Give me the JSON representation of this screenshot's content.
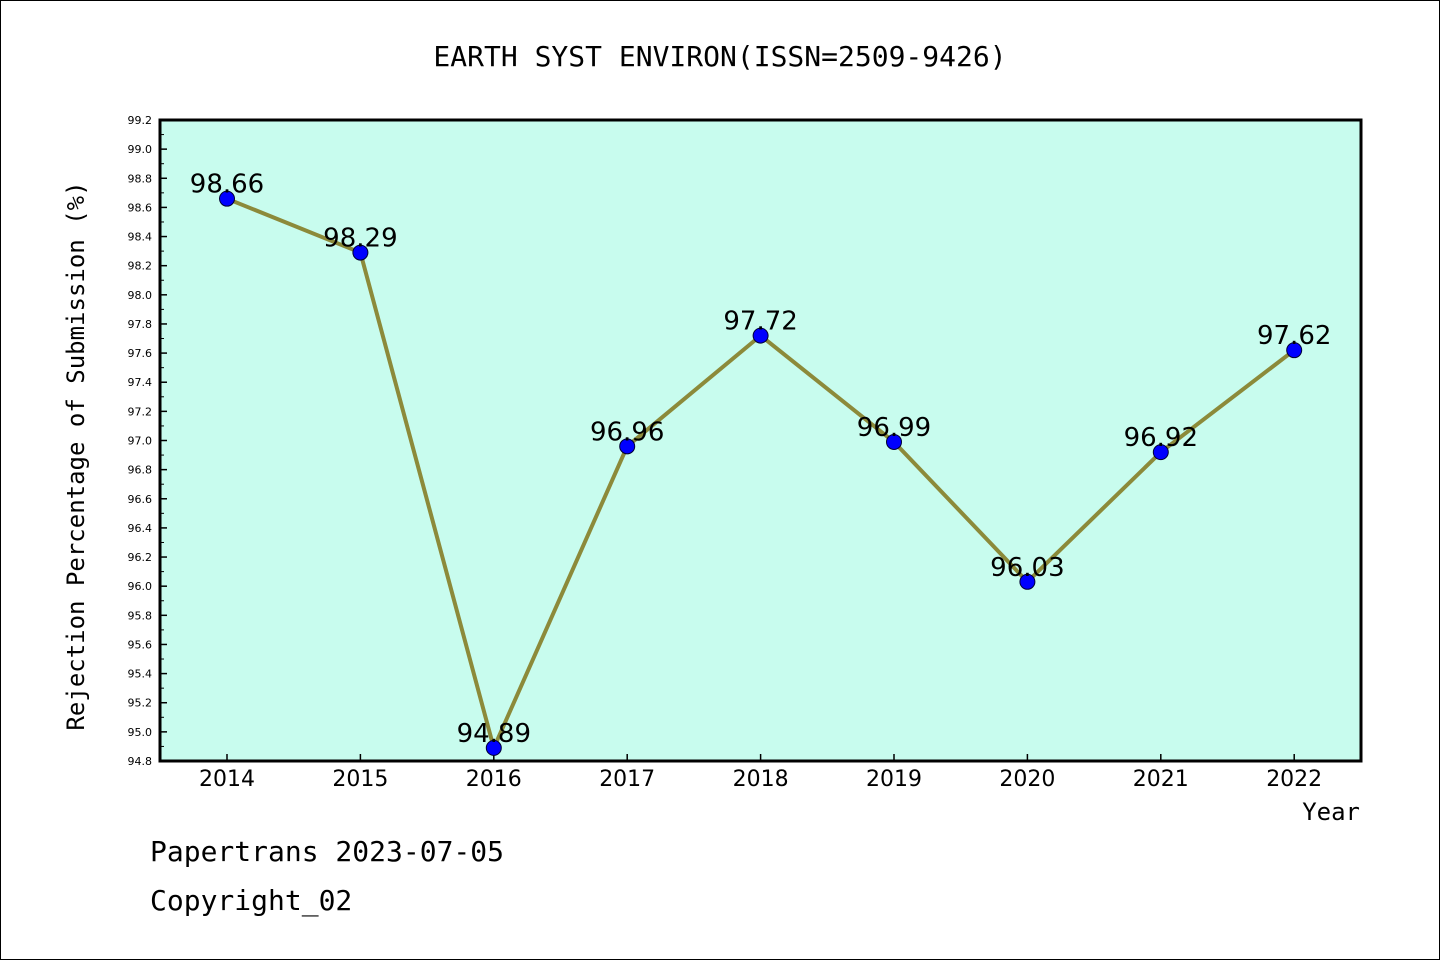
{
  "chart_data": {
    "type": "line",
    "title": "EARTH SYST ENVIRON(ISSN=2509-9426)",
    "xlabel": "Year",
    "ylabel": "Rejection Percentage of Submission (%)",
    "categories": [
      "2014",
      "2015",
      "2016",
      "2017",
      "2018",
      "2019",
      "2020",
      "2021",
      "2022"
    ],
    "values": [
      98.66,
      98.29,
      94.89,
      96.96,
      97.72,
      96.99,
      96.03,
      96.92,
      97.62
    ],
    "data_labels": [
      "98.66",
      "98.29",
      "94.89",
      "96.96",
      "97.72",
      "96.99",
      "96.03",
      "96.92",
      "97.62"
    ],
    "ylim": [
      94.8,
      99.2
    ],
    "yticks": [
      "94.8",
      "95.0",
      "95.2",
      "95.4",
      "95.6",
      "95.8",
      "96.0",
      "96.2",
      "96.4",
      "96.6",
      "96.8",
      "97.0",
      "97.2",
      "97.4",
      "97.6",
      "97.8",
      "98.0",
      "98.2",
      "98.4",
      "98.6",
      "98.8",
      "99.0",
      "99.2"
    ],
    "grid": false,
    "legend": "none",
    "colors": {
      "plot_background": "#c8fcee",
      "line": "#8c8a3a",
      "marker": "#0000ff"
    }
  },
  "footer": {
    "line1": "Papertrans 2023-07-05",
    "line2": "Copyright_02"
  }
}
